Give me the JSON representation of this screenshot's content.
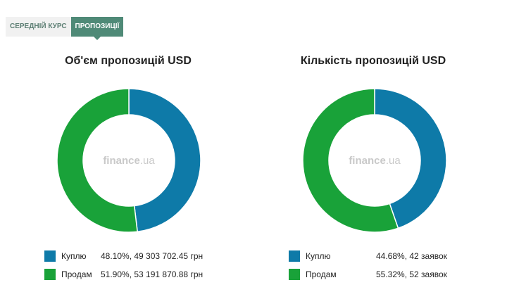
{
  "tabs": [
    {
      "label": "СЕРЕДНІЙ КУРС",
      "active": false
    },
    {
      "label": "ПРОПОЗИЦІЇ",
      "active": true
    }
  ],
  "watermark": {
    "brand": "finance",
    "suffix": ".ua"
  },
  "colors": {
    "buy": "#0e7aa8",
    "sell": "#19a239",
    "tab_active": "#4f8a77",
    "watermark": "#c9c9c9"
  },
  "chart_data": [
    {
      "type": "pie",
      "title": "Об'єм пропозицій USD",
      "slices": [
        {
          "label": "Куплю",
          "percent": 48.1,
          "value": 49303702.45,
          "value_text": "48.10%, 49 303 702.45 грн"
        },
        {
          "label": "Продам",
          "percent": 51.9,
          "value": 53191870.88,
          "value_text": "51.90%, 53 191 870.88 грн"
        }
      ]
    },
    {
      "type": "pie",
      "title": "Кількість пропозицій USD",
      "slices": [
        {
          "label": "Куплю",
          "percent": 44.68,
          "value": 42,
          "value_text": "44.68%, 42 заявок"
        },
        {
          "label": "Продам",
          "percent": 55.32,
          "value": 52,
          "value_text": "55.32%, 52 заявок"
        }
      ]
    }
  ]
}
